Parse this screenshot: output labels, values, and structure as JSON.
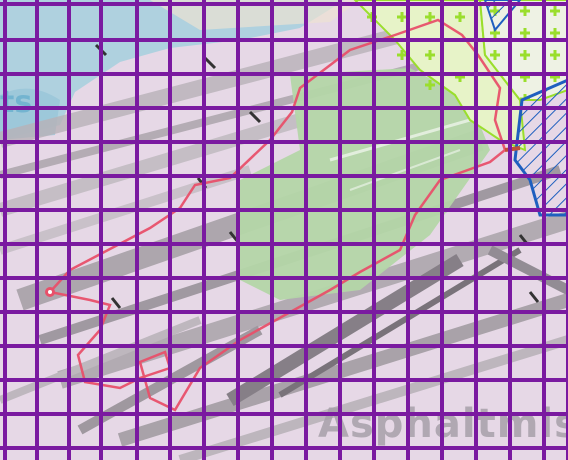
{
  "map": {
    "place_label": "Asphaltmisc",
    "water_label_fragment": "ts",
    "grid_columns": 17,
    "grid_rows": 14,
    "colors": {
      "grid": "#7a1aa0",
      "track": "#e8506a",
      "park": "#b4d6a8",
      "water": "#a9d0de",
      "background": "#e6d8e6",
      "hatch_blue": "#1f5fbf",
      "green_area": "#9ade2c"
    },
    "icons": [
      "waypoint-marker-icon",
      "plus-marker-icon",
      "rail-crossing-icon"
    ]
  }
}
